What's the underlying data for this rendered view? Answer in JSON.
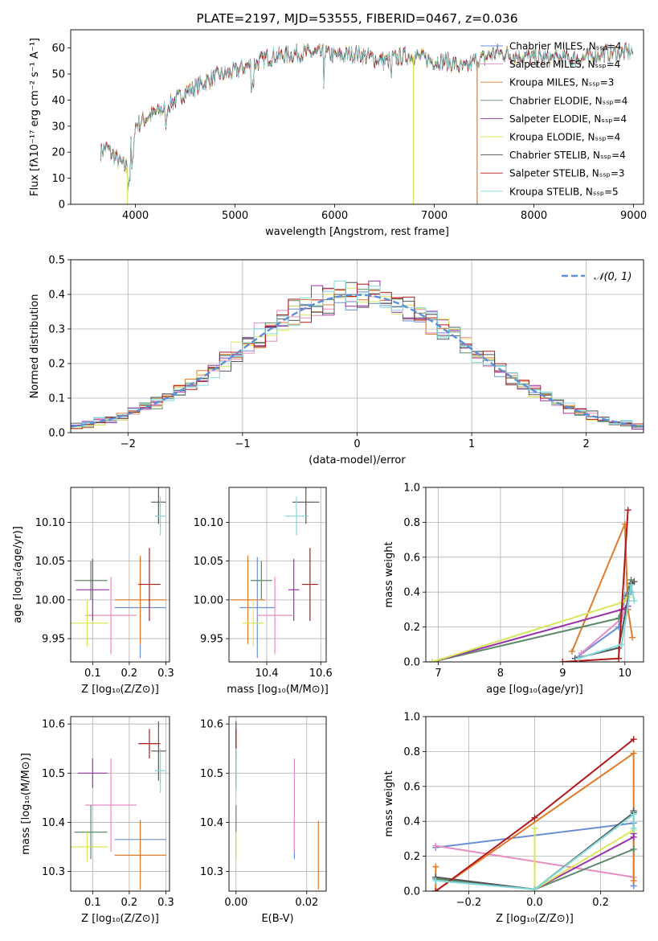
{
  "colors": {
    "chabrier_miles": "#6a8fd8",
    "salpeter_miles": "#e88cc4",
    "kroupa_miles": "#e07b2a",
    "chabrier_elodie": "#5e8a6a",
    "salpeter_elodie": "#9a32a8",
    "kroupa_elodie": "#d8e85a",
    "chabrier_stelib": "#555555",
    "salpeter_stelib": "#b01a1a",
    "kroupa_stelib": "#80dada",
    "normal": "#5b8fd8"
  },
  "chart_data": [
    {
      "id": "spectrum",
      "type": "line",
      "title": "PLATE=2197, MJD=53555, FIBERID=0467, z=0.036",
      "xlabel": "wavelength [Angstrom, rest frame]",
      "ylabel": "Flux [fλ10⁻¹⁷ erg cm⁻² s⁻¹ A⁻¹]",
      "xlim": [
        3350,
        9100
      ],
      "ylim": [
        0,
        67
      ],
      "xticks": [
        4000,
        5000,
        6000,
        7000,
        8000,
        9000
      ],
      "yticks": [
        0,
        10,
        20,
        30,
        40,
        50,
        60
      ],
      "legend_position": "top-right",
      "series": [
        {
          "name": "Chabrier MILES, Nₛₛₚ=4",
          "key": "chabrier_miles"
        },
        {
          "name": "Salpeter MILES, Nₛₛₚ=4",
          "key": "salpeter_miles"
        },
        {
          "name": "Kroupa MILES, Nₛₛₚ=3",
          "key": "kroupa_miles"
        },
        {
          "name": "Chabrier ELODIE, Nₛₛₚ=4",
          "key": "chabrier_elodie"
        },
        {
          "name": "Salpeter ELODIE, Nₛₛₚ=4",
          "key": "salpeter_elodie"
        },
        {
          "name": "Kroupa ELODIE, Nₛₛₚ=4",
          "key": "kroupa_elodie"
        },
        {
          "name": "Chabrier STELIB, Nₛₛₚ=4",
          "key": "chabrier_stelib"
        },
        {
          "name": "Salpeter STELIB, Nₛₛₚ=3",
          "key": "salpeter_stelib"
        },
        {
          "name": "Kroupa STELIB, Nₛₛₚ=5",
          "key": "kroupa_stelib"
        }
      ],
      "continuum_x": [
        3650,
        3700,
        3800,
        3900,
        4000,
        4100,
        4200,
        4300,
        4400,
        4500,
        4600,
        4700,
        4800,
        4900,
        5000,
        5100,
        5200,
        5300,
        5400,
        5500,
        5600,
        5700,
        5800,
        5900,
        6000,
        6100,
        6200,
        6300,
        6400,
        6500,
        6600,
        6700,
        6800,
        6900,
        7000,
        7100,
        7200,
        7300,
        7400,
        7500,
        7600,
        7700,
        7800,
        7900,
        8000,
        8100,
        8200,
        8300,
        8400,
        8500,
        8600,
        8700,
        8800,
        8900,
        9000
      ],
      "continuum_y": [
        20,
        22,
        18,
        14,
        30,
        33,
        35,
        37,
        40,
        43,
        45,
        47,
        49,
        50,
        51,
        53,
        54,
        56,
        57,
        57,
        58,
        58,
        58,
        58,
        57,
        57,
        58,
        57,
        56,
        55,
        56,
        57,
        57,
        56,
        55,
        55,
        54,
        52,
        55,
        56,
        58,
        58,
        57,
        57,
        56,
        56,
        56,
        56,
        56,
        56,
        57,
        58,
        58,
        58,
        59
      ],
      "spikes_x": [
        3920,
        6790,
        7430
      ]
    },
    {
      "id": "residuals",
      "type": "step",
      "title": "",
      "xlabel": "(data-model)/error",
      "ylabel": "Normed distribution",
      "xlim": [
        -2.5,
        2.5
      ],
      "ylim": [
        0,
        0.5
      ],
      "xticks": [
        -2,
        -1,
        0,
        1,
        2
      ],
      "yticks": [
        0,
        0.1,
        0.2,
        0.3,
        0.4,
        0.5
      ],
      "legend_position": "top-right",
      "legend": "𝒩(0, 1)",
      "bin_width": 0.1
    },
    {
      "id": "age-vs-Z",
      "type": "errorbar",
      "xlabel": "Z [log₁₀(Z/Z⊙)]",
      "ylabel": "age  [log₁₀(age/yr)]",
      "xlim": [
        0.04,
        0.31
      ],
      "ylim": [
        9.92,
        10.145
      ],
      "xticks": [
        0.1,
        0.2,
        0.3
      ],
      "yticks": [
        9.95,
        10.0,
        10.05,
        10.1
      ],
      "points": [
        {
          "key": "chabrier_miles",
          "x": 0.23,
          "xerr": 0.07,
          "y": 9.99,
          "yerr": 0.065
        },
        {
          "key": "salpeter_miles",
          "x": 0.15,
          "xerr": 0.07,
          "y": 9.98,
          "yerr": 0.05
        },
        {
          "key": "kroupa_miles",
          "x": 0.23,
          "xerr": 0.07,
          "y": 10.0,
          "yerr": 0.057
        },
        {
          "key": "chabrier_elodie",
          "x": 0.095,
          "xerr": 0.045,
          "y": 10.025,
          "yerr": 0.025
        },
        {
          "key": "salpeter_elodie",
          "x": 0.1,
          "xerr": 0.045,
          "y": 10.013,
          "yerr": 0.04
        },
        {
          "key": "kroupa_elodie",
          "x": 0.085,
          "xerr": 0.058,
          "y": 9.97,
          "yerr": 0.03
        },
        {
          "key": "chabrier_stelib",
          "x": 0.28,
          "xerr": 0.02,
          "y": 10.126,
          "yerr": 0.028
        },
        {
          "key": "salpeter_stelib",
          "x": 0.255,
          "xerr": 0.03,
          "y": 10.02,
          "yerr": 0.047
        },
        {
          "key": "kroupa_stelib",
          "x": 0.285,
          "xerr": 0.015,
          "y": 10.108,
          "yerr": 0.025
        }
      ]
    },
    {
      "id": "age-vs-mass",
      "type": "errorbar",
      "xlabel": "mass [log₁₀(M/M⊙)]",
      "ylabel": "",
      "xlim": [
        10.26,
        10.62
      ],
      "ylim": [
        9.92,
        10.145
      ],
      "xticks": [
        10.4,
        10.6
      ],
      "yticks": [
        9.95,
        10.0,
        10.05,
        10.1
      ],
      "points": [
        {
          "key": "chabrier_miles",
          "x": 10.365,
          "xerr": 0.065,
          "y": 9.99,
          "yerr": 0.065
        },
        {
          "key": "salpeter_miles",
          "x": 10.43,
          "xerr": 0.065,
          "y": 9.98,
          "yerr": 0.05
        },
        {
          "key": "kroupa_miles",
          "x": 10.33,
          "xerr": 0.065,
          "y": 10.0,
          "yerr": 0.057
        },
        {
          "key": "chabrier_elodie",
          "x": 10.38,
          "xerr": 0.04,
          "y": 10.025,
          "yerr": 0.025
        },
        {
          "key": "salpeter_elodie",
          "x": 10.5,
          "xerr": 0.02,
          "y": 10.013,
          "yerr": 0.04
        },
        {
          "key": "kroupa_elodie",
          "x": 10.35,
          "xerr": 0.04,
          "y": 9.97,
          "yerr": 0.03
        },
        {
          "key": "chabrier_stelib",
          "x": 10.545,
          "xerr": 0.05,
          "y": 10.126,
          "yerr": 0.028
        },
        {
          "key": "salpeter_stelib",
          "x": 10.56,
          "xerr": 0.03,
          "y": 10.02,
          "yerr": 0.047
        },
        {
          "key": "kroupa_stelib",
          "x": 10.51,
          "xerr": 0.045,
          "y": 10.108,
          "yerr": 0.025
        }
      ]
    },
    {
      "id": "mass-weight-vs-age",
      "type": "line",
      "xlabel": "age  [log₁₀(age/yr)]",
      "ylabel": "mass weight",
      "xlim": [
        6.8,
        10.3
      ],
      "ylim": [
        0,
        1.0
      ],
      "xticks": [
        7,
        8,
        9,
        10
      ],
      "yticks": [
        0.0,
        0.2,
        0.4,
        0.6,
        0.8,
        1.0
      ],
      "series": [
        {
          "key": "chabrier_miles",
          "x": [
            9.2,
            9.9,
            10.0,
            10.1
          ],
          "y": [
            0.02,
            0.2,
            0.38,
            0.4
          ]
        },
        {
          "key": "salpeter_miles",
          "x": [
            9.3,
            9.95,
            10.05,
            10.12
          ],
          "y": [
            0.05,
            0.25,
            0.35,
            0.45
          ]
        },
        {
          "key": "kroupa_miles",
          "x": [
            9.15,
            10.0,
            10.05,
            10.12
          ],
          "y": [
            0.06,
            0.79,
            0.3,
            0.14
          ]
        },
        {
          "key": "chabrier_elodie",
          "x": [
            6.9,
            9.9,
            10.1
          ],
          "y": [
            0.0,
            0.25,
            0.47
          ]
        },
        {
          "key": "salpeter_elodie",
          "x": [
            6.9,
            9.95,
            10.05
          ],
          "y": [
            0.0,
            0.3,
            0.32
          ]
        },
        {
          "key": "kroupa_elodie",
          "x": [
            6.9,
            9.95,
            10.05
          ],
          "y": [
            0.0,
            0.34,
            0.37
          ]
        },
        {
          "key": "chabrier_stelib",
          "x": [
            9.2,
            9.9,
            10.1,
            10.15
          ],
          "y": [
            0.02,
            0.08,
            0.45,
            0.46
          ]
        },
        {
          "key": "salpeter_stelib",
          "x": [
            9.0,
            9.9,
            10.05
          ],
          "y": [
            0.0,
            0.02,
            0.87
          ]
        },
        {
          "key": "kroupa_stelib",
          "x": [
            9.25,
            9.95,
            10.1,
            10.15
          ],
          "y": [
            0.02,
            0.1,
            0.44,
            0.35
          ]
        }
      ]
    },
    {
      "id": "mass-vs-Z",
      "type": "errorbar",
      "xlabel": "Z [log₁₀(Z/Z⊙)]",
      "ylabel": "mass [log₁₀(M/M⊙)]",
      "xlim": [
        0.04,
        0.31
      ],
      "ylim": [
        10.26,
        10.615
      ],
      "xticks": [
        0.1,
        0.2,
        0.3
      ],
      "yticks": [
        10.3,
        10.4,
        10.5,
        10.6
      ],
      "points": [
        {
          "key": "chabrier_miles",
          "x": 0.23,
          "xerr": 0.07,
          "y": 10.365,
          "yerr": 0.04
        },
        {
          "key": "salpeter_miles",
          "x": 0.15,
          "xerr": 0.07,
          "y": 10.435,
          "yerr": 0.095
        },
        {
          "key": "kroupa_miles",
          "x": 0.23,
          "xerr": 0.07,
          "y": 10.333,
          "yerr": 0.07
        },
        {
          "key": "chabrier_elodie",
          "x": 0.095,
          "xerr": 0.045,
          "y": 10.38,
          "yerr": 0.055
        },
        {
          "key": "salpeter_elodie",
          "x": 0.1,
          "xerr": 0.04,
          "y": 10.5,
          "yerr": 0.03
        },
        {
          "key": "kroupa_elodie",
          "x": 0.085,
          "xerr": 0.058,
          "y": 10.35,
          "yerr": 0.03
        },
        {
          "key": "chabrier_stelib",
          "x": 0.28,
          "xerr": 0.02,
          "y": 10.545,
          "yerr": 0.06
        },
        {
          "key": "salpeter_stelib",
          "x": 0.255,
          "xerr": 0.03,
          "y": 10.56,
          "yerr": 0.03
        },
        {
          "key": "kroupa_stelib",
          "x": 0.285,
          "xerr": 0.015,
          "y": 10.505,
          "yerr": 0.045
        }
      ]
    },
    {
      "id": "mass-vs-ebv",
      "type": "errorbar",
      "xlabel": "E(B-V)",
      "ylabel": "",
      "xlim": [
        -0.002,
        0.0255
      ],
      "ylim": [
        10.26,
        10.615
      ],
      "xticks": [
        0.0,
        0.02
      ],
      "yticks": [
        10.3,
        10.4,
        10.5,
        10.6
      ],
      "points": [
        {
          "key": "chabrier_miles",
          "x": 0.0165,
          "y": 10.365,
          "yerr": 0.04
        },
        {
          "key": "salpeter_miles",
          "x": 0.0165,
          "y": 10.435,
          "yerr": 0.095
        },
        {
          "key": "kroupa_miles",
          "x": 0.0233,
          "y": 10.333,
          "yerr": 0.07
        },
        {
          "key": "chabrier_elodie",
          "x": 0.0,
          "y": 10.38,
          "yerr": 0.055
        },
        {
          "key": "salpeter_elodie",
          "x": 0.0,
          "y": 10.5,
          "yerr": 0.03
        },
        {
          "key": "kroupa_elodie",
          "x": 0.0,
          "y": 10.35,
          "yerr": 0.03
        },
        {
          "key": "chabrier_stelib",
          "x": 0.0,
          "y": 10.545,
          "yerr": 0.06
        },
        {
          "key": "salpeter_stelib",
          "x": 0.0,
          "y": 10.56,
          "yerr": 0.03
        },
        {
          "key": "kroupa_stelib",
          "x": 0.0,
          "y": 10.505,
          "yerr": 0.045
        }
      ]
    },
    {
      "id": "mass-weight-vs-Z",
      "type": "line",
      "xlabel": "Z [log₁₀(Z/Z⊙)]",
      "ylabel": "mass weight",
      "xlim": [
        -0.33,
        0.33
      ],
      "ylim": [
        0,
        1.0
      ],
      "xticks": [
        -0.2,
        0.0,
        0.2
      ],
      "yticks": [
        0.0,
        0.2,
        0.4,
        0.6,
        0.8,
        1.0
      ],
      "series": [
        {
          "key": "chabrier_miles",
          "x": [
            -0.3,
            0.3,
            0.3
          ],
          "y": [
            0.25,
            0.39,
            0.03
          ]
        },
        {
          "key": "salpeter_miles",
          "x": [
            -0.3,
            0.3
          ],
          "y": [
            0.26,
            0.08
          ]
        },
        {
          "key": "kroupa_miles",
          "x": [
            -0.3,
            -0.3,
            0.3,
            0.3
          ],
          "y": [
            0.14,
            0.0,
            0.79,
            0.06
          ]
        },
        {
          "key": "chabrier_elodie",
          "x": [
            -0.3,
            0.0,
            0.3
          ],
          "y": [
            0.07,
            0.01,
            0.24
          ]
        },
        {
          "key": "salpeter_elodie",
          "x": [
            0.0,
            0.3,
            0.3
          ],
          "y": [
            0.01,
            0.31,
            0.33
          ]
        },
        {
          "key": "kroupa_elodie",
          "x": [
            0.0,
            0.0,
            0.3
          ],
          "y": [
            0.36,
            0.01,
            0.35
          ]
        },
        {
          "key": "chabrier_stelib",
          "x": [
            -0.3,
            0.0,
            0.3,
            0.3
          ],
          "y": [
            0.08,
            0.01,
            0.45,
            0.46
          ]
        },
        {
          "key": "salpeter_stelib",
          "x": [
            -0.3,
            0.0,
            0.3
          ],
          "y": [
            0.0,
            0.42,
            0.87
          ]
        },
        {
          "key": "kroupa_stelib",
          "x": [
            -0.3,
            0.0,
            0.3,
            0.3
          ],
          "y": [
            0.06,
            0.01,
            0.44,
            0.36
          ]
        }
      ]
    }
  ]
}
